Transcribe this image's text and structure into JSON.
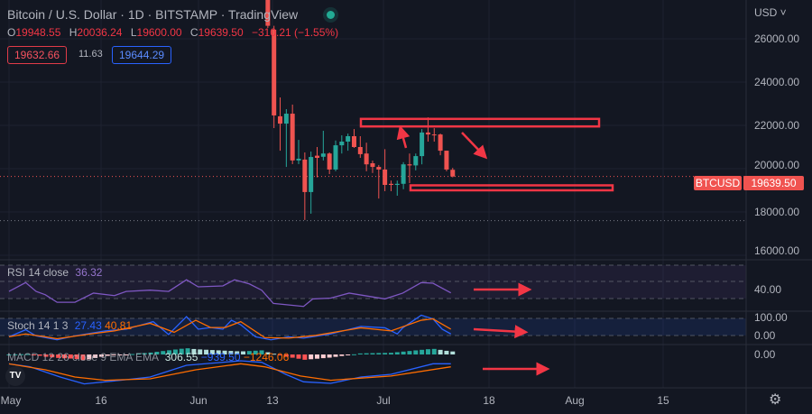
{
  "header": {
    "title": "Bitcoin / U.S. Dollar · 1D · BITSTAMP · TradingView",
    "ohlc": {
      "o_label": "O",
      "o": "19948.55",
      "h_label": "H",
      "h": "20036.24",
      "l_label": "L",
      "l": "19600.00",
      "c_label": "C",
      "c": "19639.50",
      "change": "−310.21 (−1.55%)"
    },
    "bid": "19632.66",
    "spread": "11.63",
    "ask": "19644.29"
  },
  "price_axis": {
    "currency": "USD ˅",
    "labels": [
      "26000.00",
      "24000.00",
      "22000.00",
      "20000.00",
      "18000.00",
      "16000.00"
    ],
    "symbol_tag": "BTCUSD",
    "last_price": "19639.50",
    "rsi_label": "40.00",
    "stoch_top": "100.00",
    "stoch_bottom": "0.00",
    "macd_zero": "0.00"
  },
  "time_axis": [
    "May",
    "16",
    "Jun",
    "13",
    "Jul",
    "18",
    "Aug",
    "15"
  ],
  "indicators": {
    "rsi": {
      "name": "RSI 14 close",
      "value": "36.32"
    },
    "stoch": {
      "name": "Stoch 14 1 3",
      "k": "27.43",
      "d": "40.81"
    },
    "macd": {
      "name": "MACD 12 26 close 9 EMA EMA",
      "hist": "306.55",
      "macd": "−939.50",
      "signal": "−1246.06"
    }
  },
  "logo_text": "TV",
  "colors": {
    "up": "#26a69a",
    "down": "#ef5350",
    "annotation": "#f23645",
    "rsi": "#7e57c2",
    "stoch_k": "#2962ff",
    "stoch_d": "#ff6d00",
    "bg": "#131722"
  },
  "chart_data": {
    "type": "candlestick",
    "title": "Bitcoin / U.S. Dollar · 1D · BITSTAMP",
    "x_unit": "days since May 1",
    "ylim": [
      15000,
      27500
    ],
    "candles": [
      {
        "day": 42,
        "o": 27800,
        "h": 28500,
        "l": 26500,
        "c": 26600
      },
      {
        "day": 43,
        "o": 26420,
        "h": 26600,
        "l": 21875,
        "c": 22460
      },
      {
        "day": 44,
        "o": 22420,
        "h": 23290,
        "l": 20830,
        "c": 22080
      },
      {
        "day": 45,
        "o": 22080,
        "h": 22750,
        "l": 20080,
        "c": 22540
      },
      {
        "day": 46,
        "o": 22540,
        "h": 22960,
        "l": 20210,
        "c": 20380
      },
      {
        "day": 47,
        "o": 20380,
        "h": 21330,
        "l": 20210,
        "c": 20460
      },
      {
        "day": 48,
        "o": 20420,
        "h": 20750,
        "l": 17630,
        "c": 18920
      },
      {
        "day": 49,
        "o": 18920,
        "h": 20790,
        "l": 17920,
        "c": 20540
      },
      {
        "day": 50,
        "o": 20600,
        "h": 21000,
        "l": 19600,
        "c": 20500
      },
      {
        "day": 51,
        "o": 20550,
        "h": 21750,
        "l": 20380,
        "c": 20700
      },
      {
        "day": 52,
        "o": 20700,
        "h": 20750,
        "l": 19750,
        "c": 19960
      },
      {
        "day": 53,
        "o": 19960,
        "h": 21300,
        "l": 19880,
        "c": 21080
      },
      {
        "day": 54,
        "o": 21080,
        "h": 21540,
        "l": 20700,
        "c": 21250
      },
      {
        "day": 55,
        "o": 21250,
        "h": 21620,
        "l": 20830,
        "c": 21500
      },
      {
        "day": 56,
        "o": 21500,
        "h": 21830,
        "l": 20960,
        "c": 21000
      },
      {
        "day": 57,
        "o": 21000,
        "h": 21500,
        "l": 20500,
        "c": 20670
      },
      {
        "day": 58,
        "o": 20700,
        "h": 21200,
        "l": 19880,
        "c": 20200
      },
      {
        "day": 59,
        "o": 20250,
        "h": 20370,
        "l": 19800,
        "c": 20080
      },
      {
        "day": 60,
        "o": 20080,
        "h": 20170,
        "l": 18620,
        "c": 19960
      },
      {
        "day": 61,
        "o": 19960,
        "h": 20900,
        "l": 18960,
        "c": 19250
      },
      {
        "day": 62,
        "o": 19300,
        "h": 19450,
        "l": 18960,
        "c": 19250
      },
      {
        "day": 63,
        "o": 19250,
        "h": 19450,
        "l": 18750,
        "c": 19300
      },
      {
        "day": 64,
        "o": 19300,
        "h": 20300,
        "l": 19050,
        "c": 20200
      },
      {
        "day": 65,
        "o": 20200,
        "h": 20700,
        "l": 19330,
        "c": 20150
      },
      {
        "day": 66,
        "o": 20150,
        "h": 20700,
        "l": 19920,
        "c": 20580
      },
      {
        "day": 67,
        "o": 20580,
        "h": 21830,
        "l": 20200,
        "c": 21670
      },
      {
        "day": 68,
        "o": 21670,
        "h": 22370,
        "l": 21250,
        "c": 21580
      },
      {
        "day": 69,
        "o": 21580,
        "h": 21870,
        "l": 21250,
        "c": 21540
      },
      {
        "day": 70,
        "o": 21580,
        "h": 21620,
        "l": 20620,
        "c": 20830
      },
      {
        "day": 71,
        "o": 20830,
        "h": 20830,
        "l": 19880,
        "c": 19960
      },
      {
        "day": 72,
        "o": 19948.55,
        "h": 20036.24,
        "l": 19600,
        "c": 19639.5
      }
    ],
    "reference_lines": [
      19639.5,
      17600
    ],
    "annotations": {
      "resistance_zone": [
        21950,
        22300
      ],
      "support_zone": [
        19000,
        19230
      ],
      "arrows": [
        "up",
        "down-right",
        "right",
        "right",
        "right"
      ]
    },
    "rsi": {
      "levels": [
        70,
        50,
        30
      ],
      "points": [
        [
          0,
          38
        ],
        [
          2.7,
          48.6
        ],
        [
          4.4,
          38
        ],
        [
          5.9,
          34
        ],
        [
          7.8,
          25
        ],
        [
          10.7,
          25
        ],
        [
          13.7,
          36
        ],
        [
          17.1,
          33
        ],
        [
          19,
          38
        ],
        [
          22.9,
          39.5
        ],
        [
          25.9,
          38
        ],
        [
          28.8,
          52
        ],
        [
          30.7,
          43.5
        ],
        [
          34.7,
          44.6
        ],
        [
          36.6,
          52
        ],
        [
          39,
          47
        ],
        [
          41,
          39.5
        ],
        [
          42.9,
          23.6
        ],
        [
          47.8,
          20
        ],
        [
          49.3,
          29
        ],
        [
          52.2,
          30
        ],
        [
          55.2,
          36
        ],
        [
          61,
          29
        ],
        [
          63.9,
          36
        ],
        [
          66.9,
          48.6
        ],
        [
          68.8,
          47.8
        ],
        [
          71.7,
          36.3
        ]
      ]
    },
    "stoch": {
      "levels": [
        80,
        20
      ],
      "k": [
        [
          0,
          15
        ],
        [
          2.7,
          40
        ],
        [
          4.4,
          18
        ],
        [
          7.8,
          4
        ],
        [
          10.7,
          18
        ],
        [
          15.6,
          36
        ],
        [
          19,
          42
        ],
        [
          23.4,
          69
        ],
        [
          25.9,
          23
        ],
        [
          28.8,
          87
        ],
        [
          30.7,
          42
        ],
        [
          32.7,
          48
        ],
        [
          34.7,
          42
        ],
        [
          36.1,
          74
        ],
        [
          37.6,
          58
        ],
        [
          40,
          15
        ],
        [
          42.5,
          4
        ],
        [
          45.4,
          15
        ],
        [
          47.8,
          10
        ],
        [
          52.2,
          25
        ],
        [
          57.1,
          52
        ],
        [
          61,
          47
        ],
        [
          63,
          25
        ],
        [
          63.9,
          47
        ],
        [
          66.9,
          92
        ],
        [
          68.8,
          79
        ],
        [
          70.3,
          42
        ],
        [
          71.7,
          25
        ]
      ],
      "d": [
        [
          0,
          15
        ],
        [
          2.7,
          25
        ],
        [
          5.9,
          15
        ],
        [
          7.8,
          8
        ],
        [
          13.2,
          25
        ],
        [
          17.1,
          36
        ],
        [
          22.9,
          63
        ],
        [
          26.8,
          31
        ],
        [
          30.3,
          74
        ],
        [
          32.7,
          48
        ],
        [
          35.1,
          48
        ],
        [
          37.6,
          69
        ],
        [
          41.5,
          12
        ],
        [
          45.4,
          10
        ],
        [
          49.8,
          20
        ],
        [
          57.1,
          47
        ],
        [
          62,
          36
        ],
        [
          66.9,
          74
        ],
        [
          68.8,
          79
        ],
        [
          71.7,
          42
        ]
      ]
    },
    "macd": {
      "macd": [
        [
          0,
          -975
        ],
        [
          3.4,
          -1290
        ],
        [
          8.3,
          -2360
        ],
        [
          12.2,
          -3080
        ],
        [
          18.1,
          -2700
        ],
        [
          22.9,
          -2360
        ],
        [
          28.8,
          -1130
        ],
        [
          37.6,
          -660
        ],
        [
          41,
          -820
        ],
        [
          44.9,
          -2075
        ],
        [
          47.8,
          -2860
        ],
        [
          52.2,
          -3020
        ],
        [
          57.1,
          -2360
        ],
        [
          62,
          -2075
        ],
        [
          68.8,
          -975
        ],
        [
          71.7,
          -975
        ]
      ],
      "signal": [
        [
          0,
          -975
        ],
        [
          5.9,
          -1600
        ],
        [
          10.7,
          -2360
        ],
        [
          15.6,
          -2700
        ],
        [
          22.9,
          -2550
        ],
        [
          30.3,
          -1600
        ],
        [
          37.6,
          -975
        ],
        [
          41.5,
          -1290
        ],
        [
          47.3,
          -2250
        ],
        [
          52.2,
          -2700
        ],
        [
          62,
          -2250
        ],
        [
          71.7,
          -1290
        ]
      ]
    }
  }
}
